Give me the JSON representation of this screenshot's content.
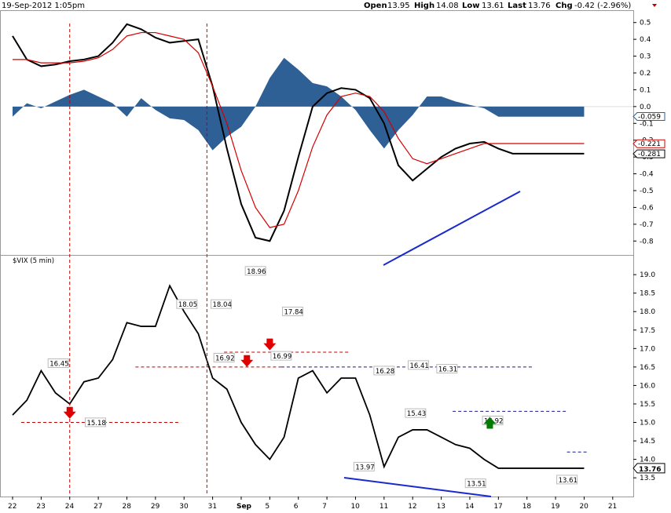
{
  "header": {
    "timestamp": "19-Sep-2012 1:05pm",
    "open_label": "Open",
    "open_value": "13.95",
    "high_label": "High",
    "high_value": "14.08",
    "low_label": "Low",
    "low_value": "13.61",
    "last_label": "Last",
    "last_value": "13.76",
    "chg_label": "Chg",
    "chg_value": "-0.42 (-2.96%)"
  },
  "chart_data": [
    {
      "type": "line",
      "panel": "oscillator",
      "ylim": [
        -0.85,
        0.55
      ],
      "y_ticks": [
        0.5,
        0.4,
        0.3,
        0.2,
        0.1,
        0.0,
        -0.1,
        -0.2,
        -0.3,
        -0.4,
        -0.5,
        -0.6,
        -0.7,
        -0.8
      ],
      "last_value_badges": [
        "-0.059",
        "-0.221",
        "-0.281"
      ],
      "x": [
        0.0,
        0.5,
        1.0,
        1.5,
        2.0,
        2.5,
        3.0,
        3.5,
        4.0,
        4.5,
        5.0,
        5.5,
        6.0,
        6.5,
        7.0,
        7.5,
        8.0,
        8.5,
        9.0,
        9.5,
        10.0,
        10.5,
        11.0,
        11.5,
        12.0,
        12.5,
        13.0,
        13.5,
        14.0,
        14.5,
        15.0,
        15.5,
        16.0,
        16.5,
        17.0,
        17.5,
        18.0,
        18.5,
        19.0,
        19.5,
        20.0
      ],
      "series": [
        {
          "role": "macd",
          "color": "#000000",
          "values": [
            0.42,
            0.28,
            0.24,
            0.25,
            0.27,
            0.28,
            0.3,
            0.38,
            0.49,
            0.46,
            0.41,
            0.38,
            0.39,
            0.4,
            0.12,
            -0.25,
            -0.58,
            -0.78,
            -0.8,
            -0.62,
            -0.3,
            0.0,
            0.08,
            0.11,
            0.1,
            0.05,
            -0.1,
            -0.35,
            -0.44,
            -0.37,
            -0.3,
            -0.25,
            -0.22,
            -0.21,
            -0.25,
            -0.28,
            -0.28,
            -0.28,
            -0.28,
            -0.28,
            -0.28
          ]
        },
        {
          "role": "signal",
          "color": "#d40000",
          "values": [
            0.28,
            0.28,
            0.26,
            0.26,
            0.26,
            0.27,
            0.29,
            0.34,
            0.42,
            0.44,
            0.44,
            0.42,
            0.4,
            0.32,
            0.12,
            -0.1,
            -0.38,
            -0.6,
            -0.72,
            -0.7,
            -0.5,
            -0.24,
            -0.05,
            0.06,
            0.08,
            0.06,
            -0.03,
            -0.19,
            -0.31,
            -0.34,
            -0.31,
            -0.28,
            -0.25,
            -0.22,
            -0.22,
            -0.22,
            -0.22,
            -0.22,
            -0.22,
            -0.22,
            -0.22
          ]
        },
        {
          "role": "histogram",
          "color": "#2e5f95",
          "values": [
            -0.06,
            0.02,
            -0.01,
            0.03,
            0.07,
            0.1,
            0.06,
            0.02,
            -0.06,
            0.05,
            -0.02,
            -0.07,
            -0.08,
            -0.14,
            -0.26,
            -0.18,
            -0.12,
            0.0,
            0.17,
            0.29,
            0.22,
            0.14,
            0.12,
            0.06,
            -0.02,
            -0.14,
            -0.25,
            -0.14,
            -0.05,
            0.06,
            0.06,
            0.03,
            0.01,
            -0.01,
            -0.06,
            -0.06,
            -0.06,
            -0.06,
            -0.06,
            -0.06,
            -0.06
          ]
        }
      ]
    },
    {
      "type": "line",
      "panel": "price",
      "title": "$VIX (5 min)",
      "ylim": [
        13.1,
        19.3
      ],
      "y_ticks": [
        19.0,
        18.5,
        18.0,
        17.5,
        17.0,
        16.5,
        16.0,
        15.5,
        15.0,
        14.5,
        14.0,
        13.5
      ],
      "last_value_badge": "13.76",
      "x_tick_labels": [
        "22",
        "23",
        "24",
        "27",
        "28",
        "29",
        "30",
        "31",
        "Sep",
        "5",
        "6",
        "7",
        "10",
        "11",
        "12",
        "13",
        "14",
        "17",
        "18",
        "19",
        "20",
        "21"
      ],
      "x": [
        0.0,
        0.5,
        1.0,
        1.5,
        2.0,
        2.5,
        3.0,
        3.5,
        4.0,
        4.5,
        5.0,
        5.5,
        6.0,
        6.5,
        7.0,
        7.5,
        8.0,
        8.5,
        9.0,
        9.5,
        10.0,
        10.5,
        11.0,
        11.5,
        12.0,
        12.5,
        13.0,
        13.5,
        14.0,
        14.5,
        15.0,
        15.5,
        16.0,
        16.5,
        17.0,
        17.5,
        18.0,
        18.5,
        19.0,
        19.5,
        20.0
      ],
      "series": [
        {
          "name": "$VIX",
          "color": "#000000",
          "values": [
            15.2,
            15.6,
            16.4,
            15.8,
            15.5,
            16.1,
            16.2,
            16.7,
            17.7,
            17.6,
            17.6,
            18.7,
            18.0,
            17.4,
            16.2,
            15.9,
            15.0,
            14.4,
            14.0,
            14.6,
            16.2,
            16.4,
            15.8,
            16.2,
            16.2,
            15.2,
            13.8,
            14.6,
            14.8,
            14.8,
            14.6,
            14.4,
            14.3,
            14.0,
            13.76,
            13.76,
            13.76,
            13.76,
            13.76,
            13.76,
            13.76
          ]
        }
      ],
      "annotations": [
        "16.45",
        "15.18",
        "18.05",
        "18.04",
        "16.92",
        "18.96",
        "17.84",
        "16.99",
        "16.28",
        "16.41",
        "16.31",
        "15.43",
        "13.97",
        "14.92",
        "13.51",
        "13.61"
      ]
    }
  ]
}
